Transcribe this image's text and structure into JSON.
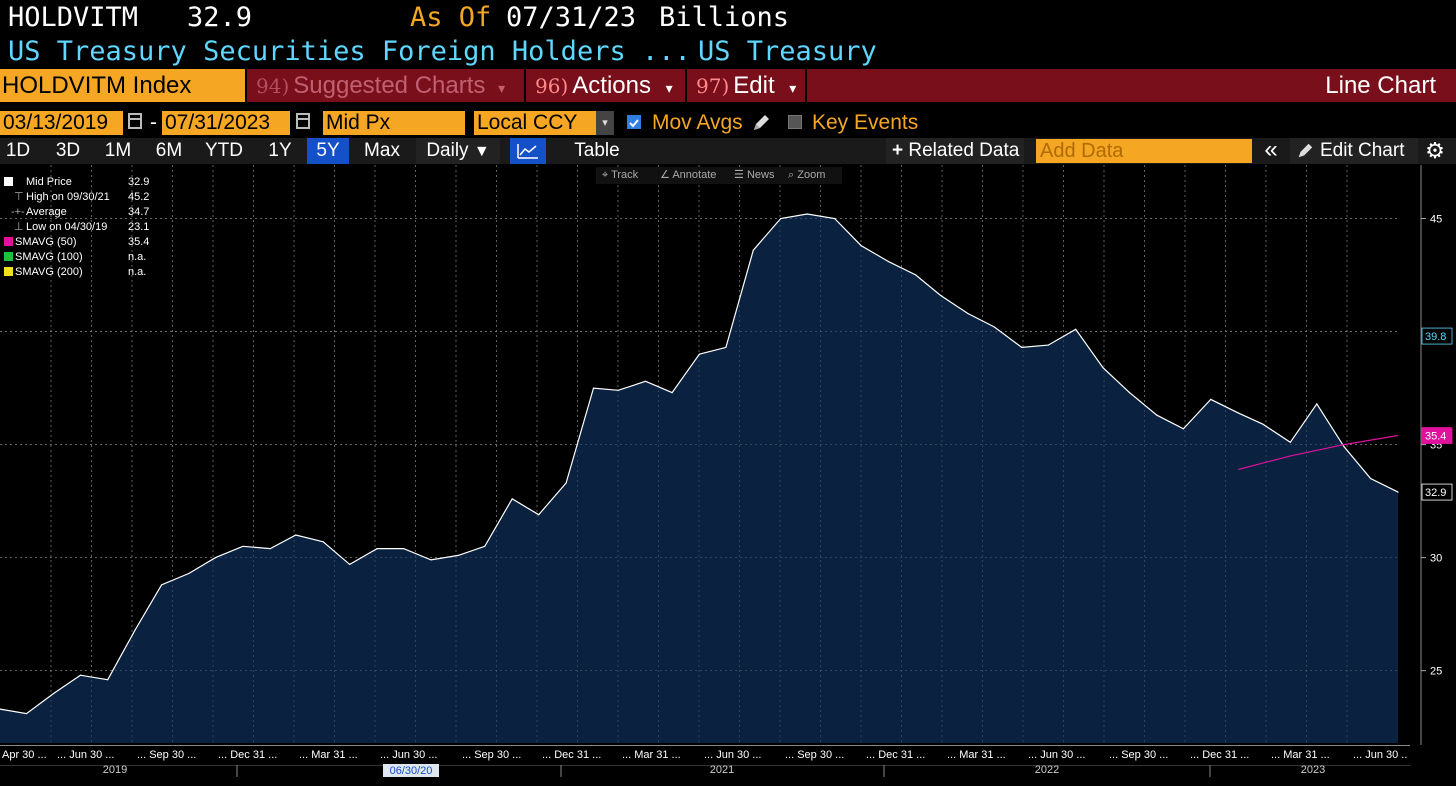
{
  "header": {
    "ticker": "HOLDVITM",
    "last_value": "32.9",
    "as_of_label": "As Of",
    "as_of_date": "07/31/23",
    "units": "Billions",
    "description": "US Treasury Securities Foreign Holders ...",
    "source": "US Treasury"
  },
  "menu": {
    "security": "HOLDVITM Index",
    "suggested_num": "94)",
    "suggested_label": "Suggested Charts",
    "actions_num": "96)",
    "actions_label": "Actions",
    "edit_num": "97)",
    "edit_label": "Edit",
    "chart_type": "Line Chart",
    "dropdown_glyph": "▾"
  },
  "options": {
    "start_date": "03/13/2019",
    "dash": "-",
    "end_date": "07/31/2023",
    "price_field": "Mid Px",
    "currency": "Local CCY",
    "mov_avgs_label": "Mov Avgs",
    "mov_avgs_checked": true,
    "key_events_label": "Key Events",
    "key_events_checked": false
  },
  "toolbar": {
    "periods": [
      "1D",
      "3D",
      "1M",
      "6M",
      "YTD",
      "1Y",
      "5Y",
      "Max"
    ],
    "selected_period": "5Y",
    "frequency": "Daily",
    "frequency_arrow": "▼",
    "table_label": "Table",
    "related_plus": "+",
    "related_label": "Related Data",
    "add_data_placeholder": "Add Data",
    "collapse_glyph": "«",
    "edit_chart_label": "Edit Chart",
    "gear_glyph": "⚙"
  },
  "chart_tools": {
    "track": "Track",
    "annotate": "Annotate",
    "news": "News",
    "zoom": "Zoom"
  },
  "legend": [
    {
      "name": "Mid Price",
      "value": "32.9",
      "color": "#ffffff"
    },
    {
      "name": "High on 09/30/21",
      "value": "45.2",
      "color": null
    },
    {
      "name": "Average",
      "value": "34.7",
      "color": null
    },
    {
      "name": "Low on 04/30/19",
      "value": "23.1",
      "color": null
    },
    {
      "name": "SMAVG (50)",
      "value": "35.4",
      "color": "#e0119d"
    },
    {
      "name": "SMAVG (100)",
      "value": "n.a.",
      "color": "#22c03a"
    },
    {
      "name": "SMAVG (200)",
      "value": "n.a.",
      "color": "#f0e020"
    }
  ],
  "chart_data": {
    "type": "area",
    "ylim": [
      21.8,
      47.5
    ],
    "y_ticks": [
      25,
      30,
      35,
      45
    ],
    "grid": true,
    "legend_position": "top-left",
    "x_tick_labels": [
      "Apr 30",
      "Jun 30",
      "Sep 30",
      "Dec 31",
      "Mar 31",
      "Jun 30",
      "Sep 30",
      "Dec 31",
      "Mar 31",
      "Jun 30",
      "Sep 30",
      "Dec 31",
      "Mar 31",
      "Jun 30",
      "Sep 30",
      "Dec 31",
      "Mar 31",
      "Jun 30",
      "Sep 30",
      "Dec 31",
      "Mar 31",
      "Jun 30"
    ],
    "x_tick_prefix": "...",
    "year_labels": [
      "2019",
      "2021",
      "2022",
      "2023"
    ],
    "cursor_date": "06/30/20",
    "series": [
      {
        "name": "Mid Price",
        "color": "#ffffff",
        "fill": "#0b2545",
        "x": [
          "2019-03-31",
          "2019-04-30",
          "2019-05-31",
          "2019-06-30",
          "2019-07-31",
          "2019-08-31",
          "2019-09-30",
          "2019-10-31",
          "2019-11-30",
          "2019-12-31",
          "2020-01-31",
          "2020-02-29",
          "2020-03-31",
          "2020-04-30",
          "2020-05-31",
          "2020-06-30",
          "2020-07-31",
          "2020-08-31",
          "2020-09-30",
          "2020-10-31",
          "2020-11-30",
          "2020-12-31",
          "2021-01-31",
          "2021-02-28",
          "2021-03-31",
          "2021-04-30",
          "2021-05-31",
          "2021-06-30",
          "2021-07-31",
          "2021-08-31",
          "2021-09-30",
          "2021-10-31",
          "2021-11-30",
          "2021-12-31",
          "2022-01-31",
          "2022-02-28",
          "2022-03-31",
          "2022-04-30",
          "2022-05-31",
          "2022-06-30",
          "2022-07-31",
          "2022-08-31",
          "2022-09-30",
          "2022-10-31",
          "2022-11-30",
          "2022-12-31",
          "2023-01-31",
          "2023-02-28",
          "2023-03-31",
          "2023-04-30",
          "2023-05-31",
          "2023-06-30",
          "2023-07-31"
        ],
        "values": [
          23.3,
          23.1,
          24.0,
          24.8,
          24.6,
          26.8,
          28.8,
          29.3,
          30.0,
          30.5,
          30.4,
          31.0,
          30.7,
          29.7,
          30.4,
          30.4,
          29.9,
          30.1,
          30.5,
          32.6,
          31.9,
          33.3,
          37.5,
          37.4,
          37.8,
          37.3,
          39.0,
          39.3,
          43.6,
          45.0,
          45.2,
          45.0,
          43.8,
          43.1,
          42.5,
          41.6,
          40.8,
          40.2,
          39.3,
          39.4,
          40.1,
          38.4,
          37.3,
          36.3,
          35.7,
          37.0,
          36.4,
          35.9,
          35.1,
          36.8,
          34.9,
          33.5,
          32.9
        ]
      },
      {
        "name": "SMAVG (50)",
        "color": "#e0119d",
        "x": [
          "2023-01-31",
          "2023-03-31",
          "2023-05-31",
          "2023-07-31"
        ],
        "values": [
          33.9,
          34.5,
          35.0,
          35.4
        ]
      }
    ],
    "last_labels": [
      {
        "value": "39.8",
        "y": 39.8,
        "bg": "#000000",
        "fg": "#5fd7ff",
        "border": "#5fd7ff"
      },
      {
        "value": "35.4",
        "y": 35.4,
        "bg": "#e0119d",
        "fg": "#ffffff",
        "border": "#e0119d"
      },
      {
        "value": "32.9",
        "y": 32.9,
        "bg": "#000000",
        "fg": "#ffffff",
        "border": "#ffffff"
      }
    ]
  }
}
